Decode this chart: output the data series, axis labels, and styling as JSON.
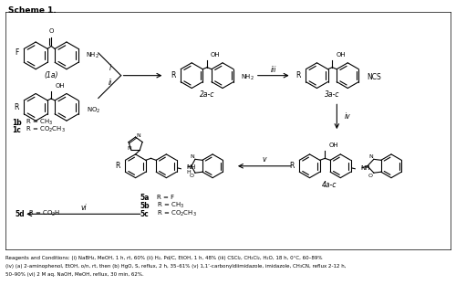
{
  "bg_color": "#ffffff",
  "figsize": [
    5.0,
    3.12
  ],
  "dpi": 100,
  "scheme_title": "Scheme 1.",
  "footnote_lines": [
    "Reagents and Conditions: (i) NaBH₄, MeOH, 1 h, rt, 60% (ii) H₂, Pd/C, EtOH, 1 h, 48% (iii) CSCl₂, CH₂Cl₂, H₂O, 18 h, 0°C, 60–89%",
    "(iv) (a) 2-aminophenol, EtOH, o/n, rt, then (b) HgO, S, reflux, 2 h, 35–61% (v) 1,1’-carbonyldiimidazole, imidazole, CH₃CN, reflux 2-12 h,",
    "50–90% (vi) 2 M aq. NaOH, MeOH, reflux, 30 min, 62%."
  ]
}
